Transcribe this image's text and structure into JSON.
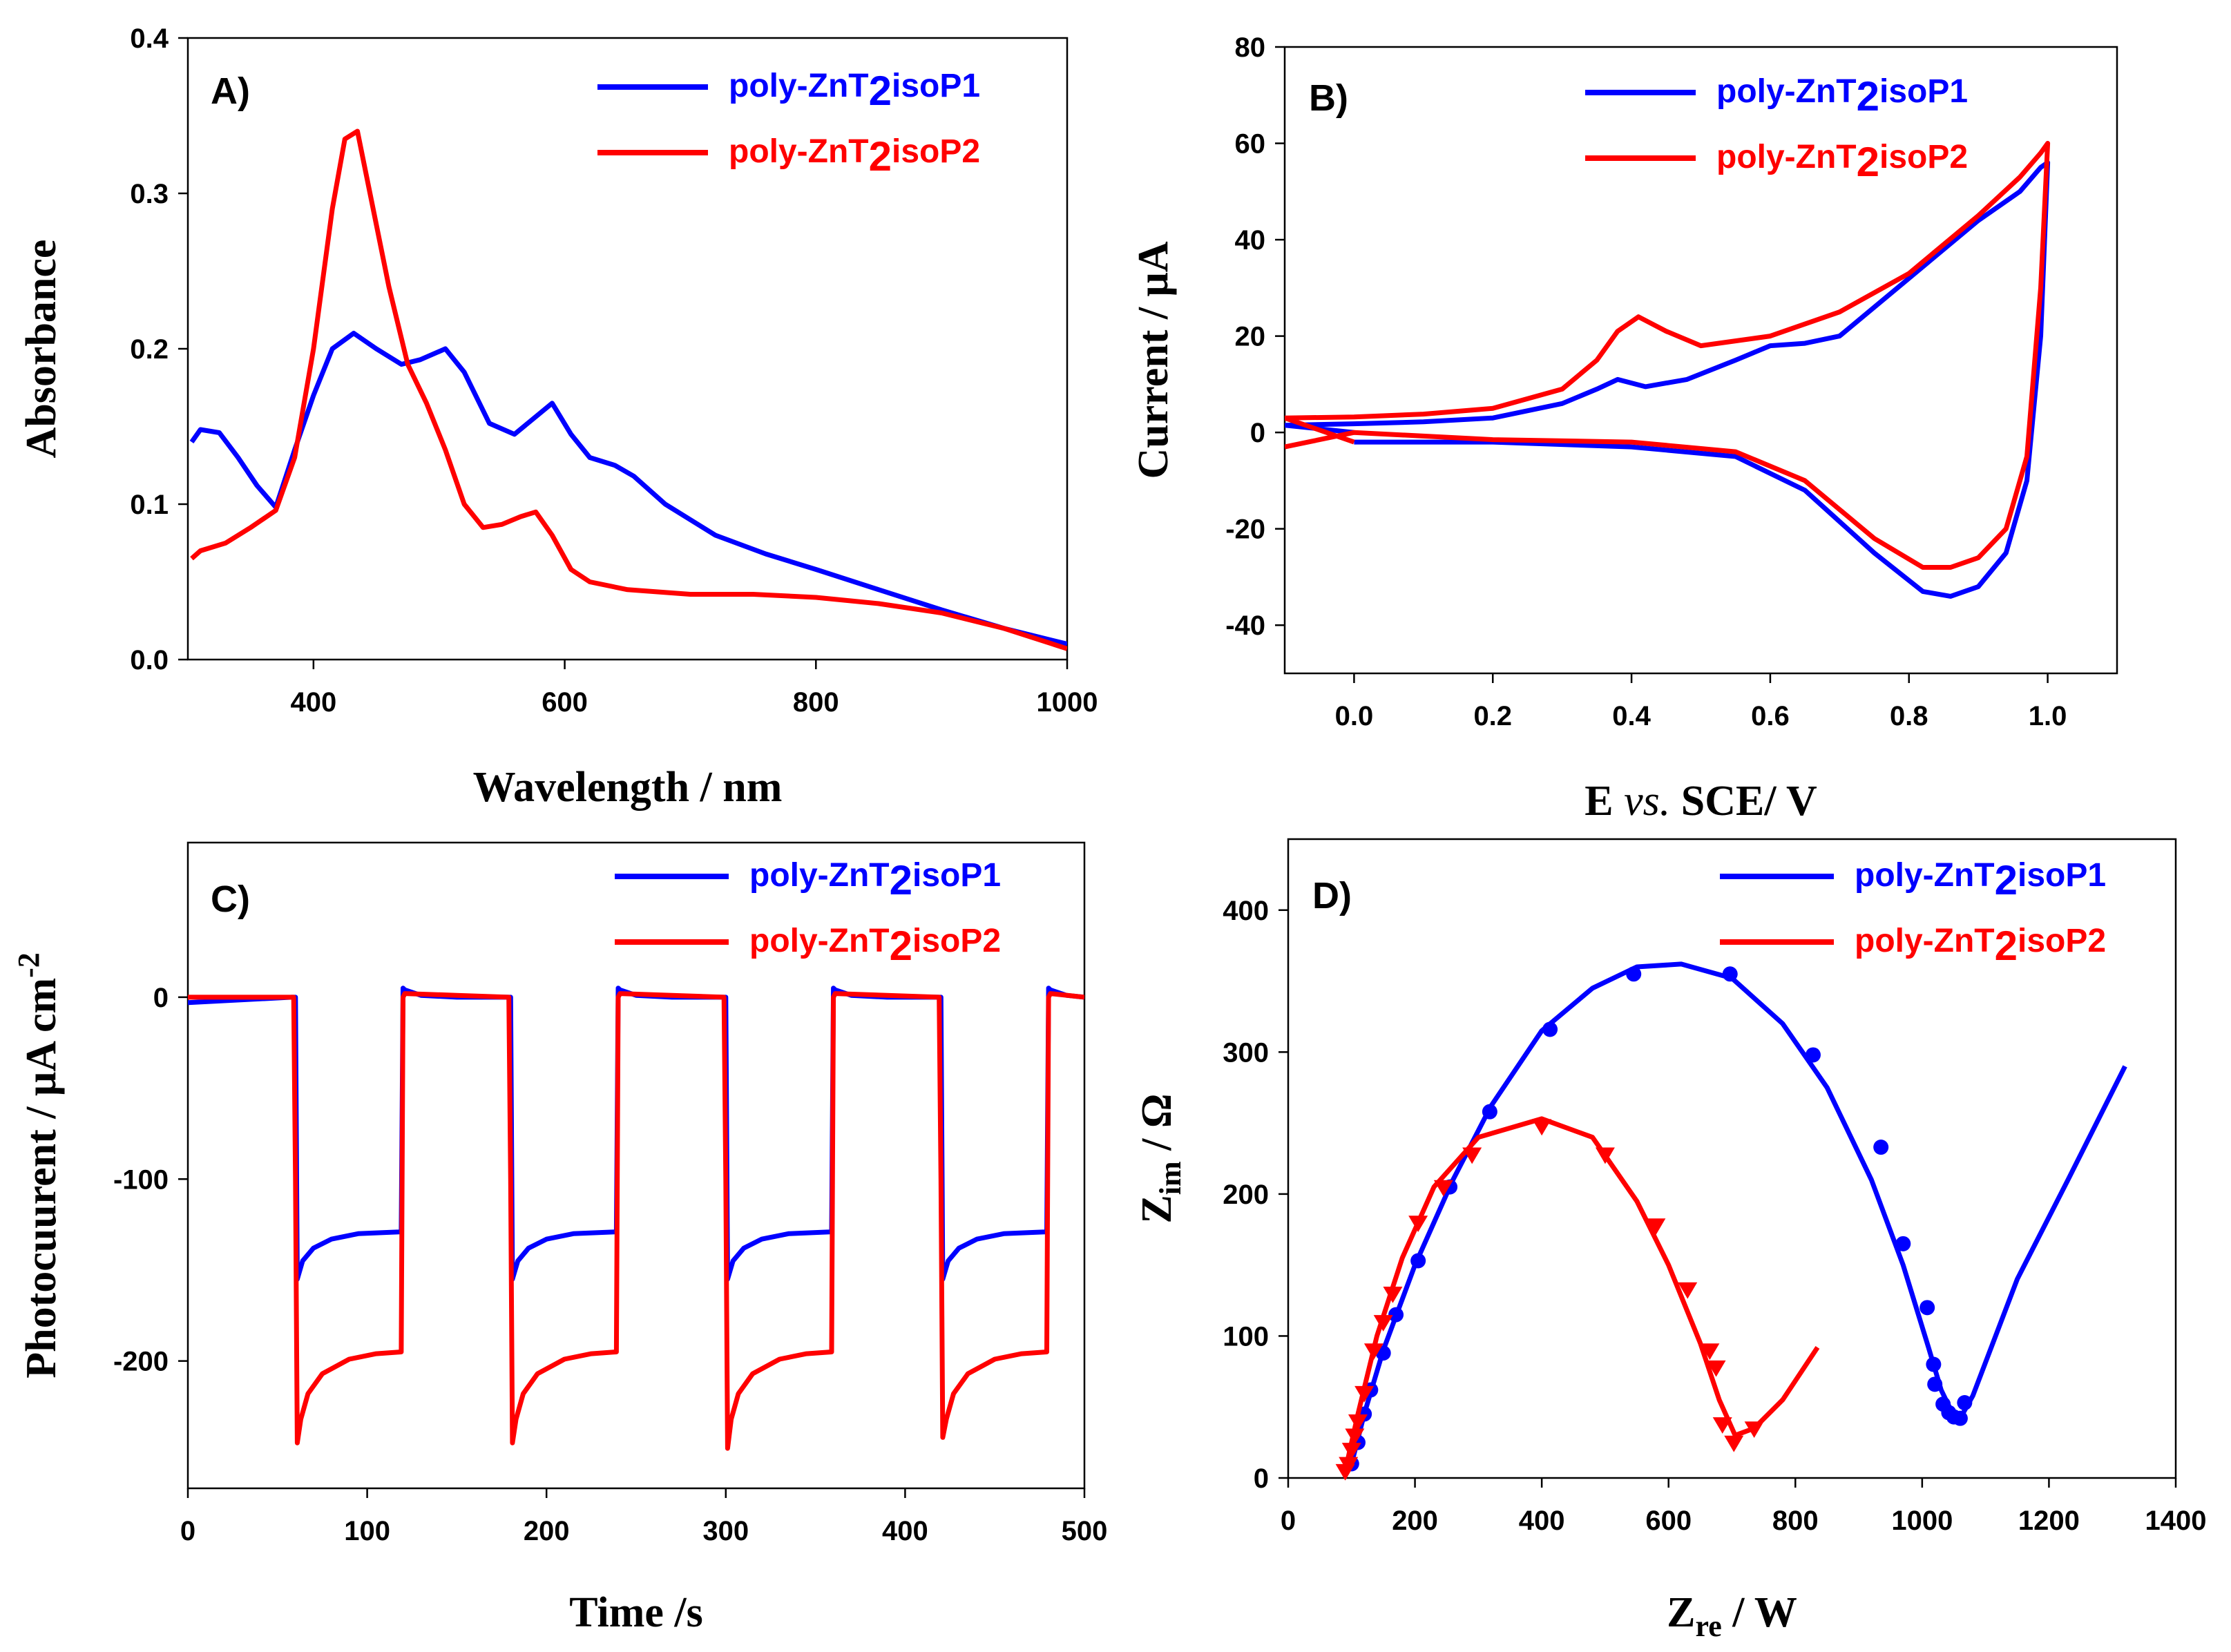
{
  "colors": {
    "blue": "#0000ff",
    "red": "#ff0000"
  },
  "chart_data": [
    {
      "panel": "A)",
      "type": "line",
      "xlabel": "Wavelength / nm",
      "ylabel": "Absorbance",
      "xlim": [
        300,
        1000
      ],
      "ylim": [
        0,
        0.4
      ],
      "xticks": [
        400,
        600,
        800,
        1000
      ],
      "yticks": [
        0.0,
        0.1,
        0.2,
        0.3,
        0.4
      ],
      "xtick_labels": [
        "400",
        "600",
        "800",
        "1000"
      ],
      "ytick_labels": [
        "0.0",
        "0.1",
        "0.2",
        "0.3",
        "0.4"
      ],
      "legend_position": "top-right",
      "series": [
        {
          "name": "poly-ZnT2isoP1",
          "name_parts": [
            "poly-ZnT",
            "2",
            "isoP1"
          ],
          "color": "#0000ff",
          "x": [
            303,
            310,
            325,
            340,
            355,
            370,
            385,
            400,
            415,
            432,
            450,
            470,
            485,
            505,
            520,
            540,
            560,
            575,
            590,
            605,
            620,
            640,
            655,
            680,
            720,
            760,
            800,
            850,
            900,
            950,
            1000
          ],
          "y": [
            0.14,
            0.148,
            0.146,
            0.13,
            0.112,
            0.098,
            0.135,
            0.17,
            0.2,
            0.21,
            0.2,
            0.19,
            0.193,
            0.2,
            0.185,
            0.152,
            0.145,
            0.155,
            0.165,
            0.145,
            0.13,
            0.125,
            0.118,
            0.1,
            0.08,
            0.068,
            0.058,
            0.045,
            0.032,
            0.02,
            0.01
          ]
        },
        {
          "name": "poly-ZnT2isoP2",
          "name_parts": [
            "poly-ZnT",
            "2",
            "isoP2"
          ],
          "color": "#ff0000",
          "x": [
            303,
            310,
            330,
            350,
            370,
            385,
            400,
            415,
            425,
            435,
            445,
            460,
            475,
            490,
            505,
            520,
            535,
            550,
            565,
            577,
            590,
            605,
            620,
            650,
            700,
            750,
            800,
            850,
            900,
            950,
            1000
          ],
          "y": [
            0.065,
            0.07,
            0.075,
            0.085,
            0.096,
            0.13,
            0.2,
            0.29,
            0.335,
            0.34,
            0.3,
            0.24,
            0.19,
            0.165,
            0.135,
            0.1,
            0.085,
            0.087,
            0.092,
            0.095,
            0.08,
            0.058,
            0.05,
            0.045,
            0.042,
            0.042,
            0.04,
            0.036,
            0.03,
            0.02,
            0.007
          ]
        }
      ]
    },
    {
      "panel": "B)",
      "type": "line",
      "xlabel_parts": [
        "E ",
        "vs.",
        " SCE/ V"
      ],
      "ylabel": "Current / μA",
      "xlim": [
        -0.1,
        1.1
      ],
      "ylim": [
        -50,
        80
      ],
      "xticks": [
        0.0,
        0.2,
        0.4,
        0.6,
        0.8,
        1.0
      ],
      "yticks": [
        -40,
        -20,
        0,
        20,
        40,
        60,
        80
      ],
      "xtick_labels": [
        "0.0",
        "0.2",
        "0.4",
        "0.6",
        "0.8",
        "1.0"
      ],
      "ytick_labels": [
        "-40",
        "-20",
        "0",
        "20",
        "40",
        "60",
        "80"
      ],
      "legend_position": "top-right",
      "series": [
        {
          "name": "poly-ZnT2isoP1",
          "name_parts": [
            "poly-ZnT",
            "2",
            "isoP1"
          ],
          "color": "#0000ff",
          "x": [
            0.0,
            -0.1,
            0.0,
            0.1,
            0.2,
            0.3,
            0.35,
            0.38,
            0.42,
            0.48,
            0.55,
            0.6,
            0.65,
            0.7,
            0.8,
            0.9,
            0.96,
            0.99,
            1.0,
            0.99,
            0.97,
            0.94,
            0.9,
            0.86,
            0.82,
            0.75,
            0.65,
            0.55,
            0.4,
            0.2,
            0.0
          ],
          "y": [
            0.0,
            1.5,
            1.8,
            2.2,
            3.0,
            6.0,
            9.0,
            11.0,
            9.5,
            11.0,
            15.0,
            18.0,
            18.5,
            20.0,
            32.0,
            44.0,
            50.0,
            55.0,
            56.0,
            20.0,
            -10.0,
            -25.0,
            -32.0,
            -34.0,
            -33.0,
            -25.0,
            -12.0,
            -5.0,
            -3.0,
            -2.0,
            -2.0
          ]
        },
        {
          "name": "poly-ZnT2isoP2",
          "name_parts": [
            "poly-ZnT",
            "2",
            "isoP2"
          ],
          "color": "#ff0000",
          "x": [
            0.0,
            -0.1,
            0.0,
            0.1,
            0.2,
            0.3,
            0.35,
            0.38,
            0.41,
            0.45,
            0.5,
            0.6,
            0.7,
            0.8,
            0.9,
            0.96,
            0.99,
            1.0,
            0.99,
            0.97,
            0.94,
            0.9,
            0.86,
            0.82,
            0.75,
            0.65,
            0.55,
            0.4,
            0.2,
            0.0,
            -0.1
          ],
          "y": [
            -2.0,
            3.0,
            3.2,
            3.8,
            5.0,
            9.0,
            15.0,
            21.0,
            24.0,
            21.0,
            18.0,
            20.0,
            25.0,
            33.0,
            45.0,
            53.0,
            58.0,
            60.0,
            30.0,
            -5.0,
            -20.0,
            -26.0,
            -28.0,
            -28.0,
            -22.0,
            -10.0,
            -4.0,
            -2.0,
            -1.5,
            0.0,
            -3.0
          ]
        }
      ]
    },
    {
      "panel": "C)",
      "type": "line",
      "xlabel": "Time /s",
      "ylabel_parts": [
        "Photocuurent / μA cm",
        "-2"
      ],
      "xlim": [
        0,
        500
      ],
      "ylim": [
        -270,
        85
      ],
      "xticks": [
        0,
        100,
        200,
        300,
        400,
        500
      ],
      "yticks": [
        -200,
        -100,
        0
      ],
      "xtick_labels": [
        "0",
        "100",
        "200",
        "300",
        "400",
        "500"
      ],
      "ytick_labels": [
        "-200",
        "-100",
        "0"
      ],
      "legend_position": "top-right",
      "series": [
        {
          "name": "poly-ZnT2isoP1",
          "name_parts": [
            "poly-ZnT",
            "2",
            "isoP1"
          ],
          "color": "#0000ff",
          "x": [
            0,
            58,
            60,
            61,
            64,
            70,
            80,
            95,
            119,
            120,
            121,
            130,
            150,
            178,
            180,
            181,
            184,
            190,
            200,
            215,
            239,
            240,
            241,
            250,
            270,
            298,
            300,
            301,
            304,
            310,
            320,
            335,
            359,
            360,
            361,
            370,
            390,
            418,
            420,
            421,
            424,
            430,
            440,
            455,
            479,
            480,
            481,
            490,
            500
          ],
          "y": [
            -3,
            0,
            0,
            -155,
            -145,
            -138,
            -133,
            -130,
            -129,
            5,
            4,
            1,
            0,
            0,
            0,
            -155,
            -145,
            -138,
            -133,
            -130,
            -129,
            5,
            4,
            1,
            0,
            0,
            0,
            -155,
            -145,
            -138,
            -133,
            -130,
            -129,
            5,
            4,
            1,
            0,
            0,
            0,
            -155,
            -145,
            -138,
            -133,
            -130,
            -129,
            5,
            4,
            1,
            0
          ]
        },
        {
          "name": "poly-ZnT2isoP2",
          "name_parts": [
            "poly-ZnT",
            "2",
            "isoP2"
          ],
          "color": "#ff0000",
          "x": [
            0,
            59,
            60,
            61,
            63,
            67,
            75,
            90,
            105,
            119,
            120,
            121,
            150,
            179,
            180,
            181,
            183,
            187,
            195,
            210,
            225,
            239,
            240,
            241,
            270,
            299,
            300,
            301,
            303,
            307,
            315,
            330,
            345,
            359,
            360,
            361,
            390,
            419,
            420,
            421,
            423,
            427,
            435,
            450,
            465,
            479,
            480,
            481,
            500
          ],
          "y": [
            0,
            0,
            -100,
            -245,
            -232,
            -218,
            -207,
            -199,
            -196,
            -195,
            0,
            2,
            1,
            0,
            -100,
            -245,
            -232,
            -218,
            -207,
            -199,
            -196,
            -195,
            0,
            2,
            1,
            0,
            -100,
            -248,
            -232,
            -218,
            -207,
            -199,
            -196,
            -195,
            0,
            2,
            1,
            0,
            -100,
            -242,
            -232,
            -218,
            -207,
            -199,
            -196,
            -195,
            0,
            2,
            0
          ]
        }
      ]
    },
    {
      "panel": "D)",
      "type": "scatter",
      "xlabel_parts": [
        "Z",
        "re",
        " / W"
      ],
      "ylabel_parts": [
        "Z",
        "im",
        " / Ω"
      ],
      "xlim": [
        0,
        1400
      ],
      "ylim": [
        0,
        450
      ],
      "xticks": [
        0,
        200,
        400,
        600,
        800,
        1000,
        1200,
        1400
      ],
      "yticks": [
        0,
        100,
        200,
        300,
        400
      ],
      "xtick_labels": [
        "0",
        "200",
        "400",
        "600",
        "800",
        "1000",
        "1200",
        "1400"
      ],
      "ytick_labels": [
        "0",
        "100",
        "200",
        "300",
        "400"
      ],
      "legend_position": "top-right",
      "series": [
        {
          "name": "poly-ZnT2isoP1",
          "name_parts": [
            "poly-ZnT",
            "2",
            "isoP1"
          ],
          "color": "#0000ff",
          "marker": "circle",
          "points_x": [
            100,
            110,
            120,
            130,
            150,
            170,
            205,
            255,
            318,
            413,
            545,
            697,
            828,
            935,
            970,
            1008,
            1018,
            1020,
            1033,
            1042,
            1050,
            1060,
            1067
          ],
          "points_y": [
            10,
            25,
            45,
            62,
            88,
            115,
            153,
            205,
            258,
            316,
            355,
            355,
            298,
            233,
            165,
            120,
            80,
            66,
            52,
            46,
            43,
            42,
            53
          ],
          "fit_x": [
            100,
            120,
            150,
            200,
            260,
            320,
            400,
            480,
            550,
            620,
            700,
            780,
            850,
            920,
            970,
            1010,
            1030,
            1045,
            1060,
            1080,
            1150,
            1230,
            1320
          ],
          "fit_y": [
            10,
            45,
            90,
            150,
            210,
            262,
            315,
            345,
            360,
            362,
            352,
            320,
            275,
            210,
            150,
            92,
            62,
            48,
            42,
            58,
            140,
            210,
            290
          ]
        },
        {
          "name": "poly-ZnT2isoP2",
          "name_parts": [
            "poly-ZnT",
            "2",
            "isoP2"
          ],
          "color": "#ff0000",
          "marker": "triangle-down",
          "points_x": [
            90,
            95,
            100,
            105,
            110,
            120,
            135,
            150,
            165,
            205,
            245,
            290,
            400,
            500,
            580,
            630,
            665,
            675,
            685,
            703,
            735
          ],
          "points_y": [
            5,
            10,
            20,
            30,
            40,
            60,
            90,
            110,
            130,
            180,
            205,
            228,
            248,
            228,
            178,
            133,
            90,
            78,
            38,
            25,
            35
          ],
          "fit_x": [
            90,
            110,
            140,
            180,
            230,
            300,
            400,
            480,
            550,
            600,
            650,
            680,
            705,
            735,
            780,
            835
          ],
          "fit_y": [
            5,
            45,
            100,
            155,
            205,
            240,
            253,
            240,
            195,
            150,
            95,
            55,
            30,
            35,
            55,
            92
          ]
        }
      ]
    }
  ]
}
